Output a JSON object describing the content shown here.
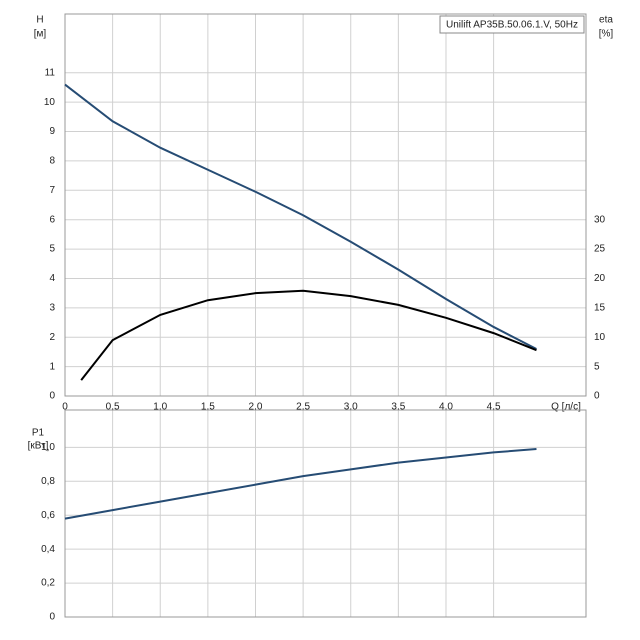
{
  "chart_data": [
    {
      "type": "line",
      "title": "Unilift AP35B.50.06.1.V, 50Hz",
      "y_label": "H",
      "y_unit": "[м]",
      "y2_label": "eta",
      "y2_unit": "[%]",
      "x_label": "Q [л/с]",
      "xlim": [
        0,
        5.47
      ],
      "xticks": [
        0,
        {
          "value": 0.5,
          "label": "0,5"
        },
        {
          "value": 1,
          "label": "1,0"
        },
        {
          "value": 1.5,
          "label": "1,5"
        },
        {
          "value": 2,
          "label": "2,0"
        },
        {
          "value": 2.5,
          "label": "2,5"
        },
        {
          "value": 3,
          "label": "3,0"
        },
        {
          "value": 3.5,
          "label": "3,5"
        },
        {
          "value": 4,
          "label": "4,0"
        },
        {
          "value": 4.5,
          "label": "4,5"
        }
      ],
      "ylim": [
        0,
        13
      ],
      "yticks": [
        0,
        1,
        2,
        3,
        4,
        5,
        6,
        7,
        8,
        9,
        10,
        11
      ],
      "y2lim": [
        0,
        65
      ],
      "y2ticks": [
        0,
        5,
        10,
        15,
        20,
        25,
        30
      ],
      "grid": true,
      "series": [
        {
          "name": "H",
          "color": "#264c74",
          "x": [
            0,
            0.5,
            1,
            1.5,
            2,
            2.5,
            3,
            3.5,
            4,
            4.5,
            4.95
          ],
          "values": [
            10.6,
            9.35,
            8.45,
            7.7,
            6.95,
            6.15,
            5.25,
            4.3,
            3.3,
            2.35,
            1.6
          ]
        },
        {
          "name": "eta",
          "color": "#000000",
          "axis": "y2",
          "x": [
            0.17,
            0.5,
            1,
            1.5,
            2,
            2.5,
            3,
            3.5,
            4,
            4.5,
            4.95
          ],
          "values": [
            2.7,
            9.5,
            13.8,
            16.3,
            17.5,
            17.9,
            17.0,
            15.5,
            13.3,
            10.7,
            7.8
          ]
        }
      ]
    },
    {
      "type": "line",
      "y_label": "P1",
      "y_unit": "[кВт]",
      "xlim": [
        0,
        5.47
      ],
      "ylim": [
        0,
        1.22
      ],
      "yticks": [
        0,
        {
          "value": 0.2,
          "label": "0,2"
        },
        {
          "value": 0.4,
          "label": "0,4"
        },
        {
          "value": 0.6,
          "label": "0,6"
        },
        {
          "value": 0.8,
          "label": "0,8"
        },
        {
          "value": 1,
          "label": "1,0"
        }
      ],
      "grid": true,
      "series": [
        {
          "name": "P1",
          "color": "#264c74",
          "x": [
            0,
            0.5,
            1,
            1.5,
            2,
            2.5,
            3,
            3.5,
            4,
            4.5,
            4.95
          ],
          "values": [
            0.58,
            0.63,
            0.68,
            0.73,
            0.78,
            0.83,
            0.87,
            0.91,
            0.94,
            0.97,
            0.99
          ]
        }
      ]
    }
  ]
}
